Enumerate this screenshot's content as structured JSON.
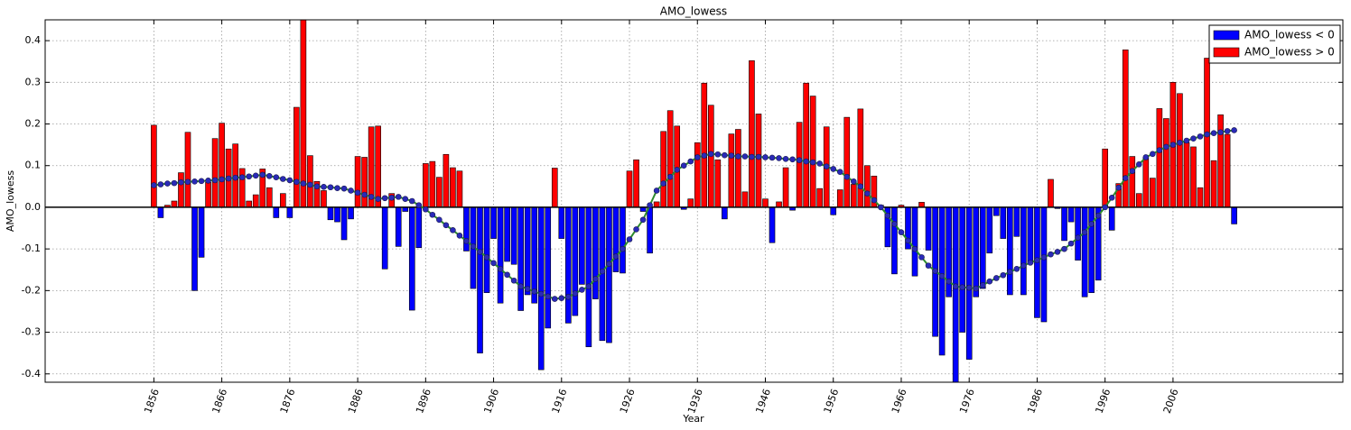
{
  "chart_data": {
    "type": "bar",
    "title": "AMO_lowess",
    "xlabel": "Year",
    "ylabel": "AMO_lowess",
    "xlim": [
      1840,
      2031
    ],
    "ylim": [
      -0.42,
      0.45
    ],
    "xticks": [
      1856,
      1866,
      1876,
      1886,
      1896,
      1906,
      1916,
      1926,
      1936,
      1946,
      1956,
      1966,
      1976,
      1986,
      1996,
      2006
    ],
    "yticks": [
      -0.4,
      -0.3,
      -0.2,
      -0.1,
      {
        "value": 0,
        "label": "0.0"
      },
      0.1,
      0.2,
      0.3,
      0.4
    ],
    "grid": true,
    "legend": "upper right",
    "series": [
      {
        "name": "AMO_lowess < 0",
        "color": "#0000ff",
        "x": [
          1857,
          1862,
          1863,
          1874,
          1876,
          1882,
          1883,
          1884,
          1885,
          1890,
          1892,
          1893,
          1894,
          1895,
          1902,
          1903,
          1904,
          1905,
          1906,
          1907,
          1908,
          1909,
          1910,
          1911,
          1912,
          1913,
          1914,
          1916,
          1917,
          1918,
          1919,
          1920,
          1921,
          1922,
          1923,
          1924,
          1925,
          1928,
          1929,
          1934,
          1940,
          1947,
          1950,
          1956,
          1964,
          1965,
          1967,
          1968,
          1970,
          1971,
          1972,
          1973,
          1974,
          1975,
          1976,
          1977,
          1978,
          1979,
          1980,
          1981,
          1982,
          1983,
          1984,
          1985,
          1986,
          1987,
          1989,
          1990,
          1991,
          1992,
          1993,
          1994,
          1995,
          1997,
          2015
        ],
        "values": [
          -0.025,
          -0.2,
          -0.12,
          -0.025,
          -0.025,
          -0.03,
          -0.035,
          -0.078,
          -0.028,
          -0.148,
          -0.094,
          -0.01,
          -0.247,
          -0.097,
          -0.105,
          -0.195,
          -0.35,
          -0.205,
          -0.075,
          -0.23,
          -0.13,
          -0.137,
          -0.248,
          -0.21,
          -0.23,
          -0.39,
          -0.29,
          -0.075,
          -0.278,
          -0.26,
          -0.185,
          -0.335,
          -0.22,
          -0.32,
          -0.325,
          -0.155,
          -0.158,
          -0.01,
          -0.11,
          -0.005,
          -0.028,
          -0.085,
          -0.007,
          -0.018,
          -0.095,
          -0.16,
          -0.1,
          -0.165,
          -0.103,
          -0.31,
          -0.355,
          -0.215,
          -0.42,
          -0.3,
          -0.365,
          -0.215,
          -0.195,
          -0.11,
          -0.02,
          -0.075,
          -0.21,
          -0.07,
          -0.21,
          -0.135,
          -0.265,
          -0.275,
          -0.003,
          -0.08,
          -0.035,
          -0.127,
          -0.215,
          -0.205,
          -0.175,
          -0.055,
          -0.04
        ]
      },
      {
        "name": "AMO_lowess > 0",
        "color": "#ff0000",
        "x": [
          1856,
          1858,
          1859,
          1860,
          1861,
          1864,
          1865,
          1866,
          1867,
          1868,
          1869,
          1870,
          1871,
          1872,
          1873,
          1875,
          1877,
          1878,
          1879,
          1880,
          1881,
          1886,
          1887,
          1888,
          1889,
          1891,
          1896,
          1897,
          1898,
          1899,
          1900,
          1901,
          1915,
          1926,
          1927,
          1930,
          1931,
          1932,
          1933,
          1935,
          1936,
          1937,
          1938,
          1939,
          1941,
          1942,
          1943,
          1944,
          1945,
          1946,
          1948,
          1949,
          1951,
          1952,
          1953,
          1954,
          1955,
          1957,
          1958,
          1959,
          1960,
          1961,
          1962,
          1963,
          1966,
          1969,
          1988,
          1996,
          1998,
          1999,
          2000,
          2001,
          2002,
          2003,
          2004,
          2005,
          2006,
          2007,
          2008,
          2009,
          2010,
          2011,
          2012,
          2013,
          2014
        ],
        "values": [
          0.197,
          0.005,
          0.015,
          0.083,
          0.18,
          0.06,
          0.165,
          0.202,
          0.14,
          0.152,
          0.093,
          0.015,
          0.03,
          0.092,
          0.047,
          0.033,
          0.24,
          0.45,
          0.124,
          0.062,
          0.04,
          0.122,
          0.12,
          0.193,
          0.195,
          0.033,
          0.105,
          0.11,
          0.072,
          0.127,
          0.095,
          0.087,
          0.094,
          0.087,
          0.114,
          0.013,
          0.182,
          0.232,
          0.195,
          0.02,
          0.155,
          0.298,
          0.245,
          0.114,
          0.176,
          0.187,
          0.037,
          0.352,
          0.224,
          0.02,
          0.013,
          0.095,
          0.204,
          0.298,
          0.267,
          0.045,
          0.193,
          0.042,
          0.216,
          0.055,
          0.236,
          0.1,
          0.075,
          0.005,
          0.005,
          0.012,
          0.067,
          0.14,
          0.057,
          0.378,
          0.122,
          0.033,
          0.12,
          0.07,
          0.237,
          0.213,
          0.3,
          0.273,
          0.155,
          0.145,
          0.047,
          0.358,
          0.112,
          0.222,
          0.175
        ]
      }
    ],
    "smooth": {
      "color": "#2e8b2e",
      "marker_color": "#2a2ab8",
      "x": [
        1856,
        1857,
        1858,
        1859,
        1860,
        1861,
        1862,
        1863,
        1864,
        1865,
        1866,
        1867,
        1868,
        1869,
        1870,
        1871,
        1872,
        1873,
        1874,
        1875,
        1876,
        1877,
        1878,
        1879,
        1880,
        1881,
        1882,
        1883,
        1884,
        1885,
        1886,
        1887,
        1888,
        1889,
        1890,
        1891,
        1892,
        1893,
        1894,
        1895,
        1896,
        1897,
        1898,
        1899,
        1900,
        1901,
        1902,
        1903,
        1904,
        1905,
        1906,
        1907,
        1908,
        1909,
        1910,
        1911,
        1912,
        1913,
        1914,
        1915,
        1916,
        1917,
        1918,
        1919,
        1920,
        1921,
        1922,
        1923,
        1924,
        1925,
        1926,
        1927,
        1928,
        1929,
        1930,
        1931,
        1932,
        1933,
        1934,
        1935,
        1936,
        1937,
        1938,
        1939,
        1940,
        1941,
        1942,
        1943,
        1944,
        1945,
        1946,
        1947,
        1948,
        1949,
        1950,
        1951,
        1952,
        1953,
        1954,
        1955,
        1956,
        1957,
        1958,
        1959,
        1960,
        1961,
        1962,
        1963,
        1964,
        1965,
        1966,
        1967,
        1968,
        1969,
        1970,
        1971,
        1972,
        1973,
        1974,
        1975,
        1976,
        1977,
        1978,
        1979,
        1980,
        1981,
        1982,
        1983,
        1984,
        1985,
        1986,
        1987,
        1988,
        1989,
        1990,
        1991,
        1992,
        1993,
        1994,
        1995,
        1996,
        1997,
        1998,
        1999,
        2000,
        2001,
        2002,
        2003,
        2004,
        2005,
        2006,
        2007,
        2008,
        2009,
        2010,
        2011,
        2012,
        2013,
        2014,
        2015
      ],
      "values": [
        0.053,
        0.055,
        0.057,
        0.058,
        0.06,
        0.061,
        0.062,
        0.063,
        0.064,
        0.065,
        0.067,
        0.069,
        0.071,
        0.072,
        0.074,
        0.076,
        0.078,
        0.075,
        0.072,
        0.068,
        0.065,
        0.061,
        0.057,
        0.054,
        0.05,
        0.049,
        0.048,
        0.046,
        0.045,
        0.04,
        0.035,
        0.03,
        0.025,
        0.02,
        0.022,
        0.023,
        0.025,
        0.02,
        0.015,
        0.005,
        -0.005,
        -0.018,
        -0.03,
        -0.043,
        -0.055,
        -0.068,
        -0.081,
        -0.094,
        -0.107,
        -0.12,
        -0.134,
        -0.148,
        -0.162,
        -0.176,
        -0.19,
        -0.196,
        -0.202,
        -0.208,
        -0.214,
        -0.22,
        -0.218,
        -0.215,
        -0.207,
        -0.198,
        -0.19,
        -0.172,
        -0.154,
        -0.136,
        -0.118,
        -0.1,
        -0.077,
        -0.053,
        -0.03,
        0.005,
        0.04,
        0.057,
        0.073,
        0.09,
        0.1,
        0.11,
        0.12,
        0.124,
        0.128,
        0.127,
        0.125,
        0.124,
        0.122,
        0.122,
        0.121,
        0.121,
        0.12,
        0.119,
        0.118,
        0.116,
        0.115,
        0.113,
        0.11,
        0.108,
        0.105,
        0.098,
        0.092,
        0.085,
        0.073,
        0.062,
        0.05,
        0.033,
        0.017,
        0,
        -0.02,
        -0.04,
        -0.06,
        -0.08,
        -0.1,
        -0.12,
        -0.14,
        -0.153,
        -0.165,
        -0.178,
        -0.19,
        -0.192,
        -0.193,
        -0.195,
        -0.187,
        -0.178,
        -0.17,
        -0.163,
        -0.155,
        -0.148,
        -0.14,
        -0.133,
        -0.127,
        -0.12,
        -0.113,
        -0.107,
        -0.1,
        -0.087,
        -0.073,
        -0.06,
        -0.04,
        -0.02,
        0,
        0.023,
        0.047,
        0.07,
        0.087,
        0.103,
        0.12,
        0.128,
        0.137,
        0.145,
        0.15,
        0.155,
        0.16,
        0.165,
        0.17,
        0.175,
        0.178,
        0.18,
        0.183,
        0.185
      ]
    }
  }
}
